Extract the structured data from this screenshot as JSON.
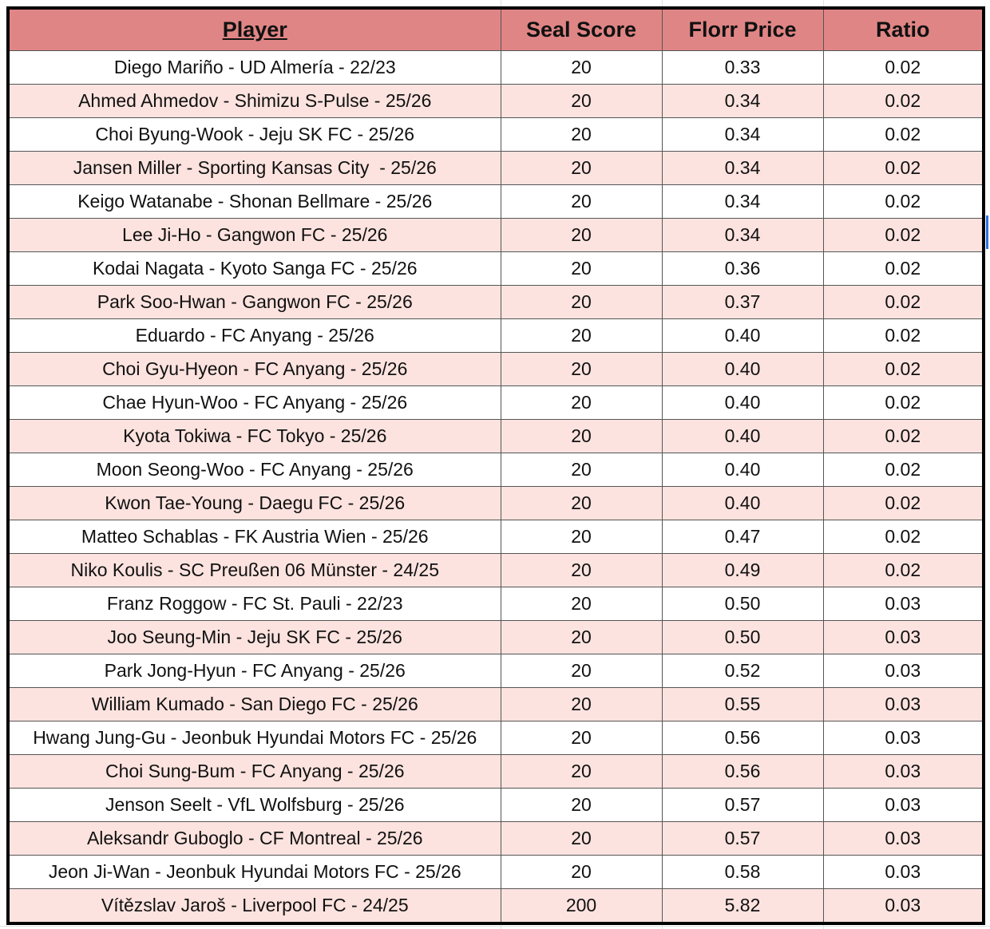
{
  "table": {
    "header": [
      "Player",
      "Seal Score",
      "Florr Price",
      "Ratio"
    ],
    "rows": [
      [
        "Diego Mariño - UD Almería - 22/23",
        "20",
        "0.33",
        "0.02"
      ],
      [
        "Ahmed Ahmedov - Shimizu S-Pulse - 25/26",
        "20",
        "0.34",
        "0.02"
      ],
      [
        "Choi Byung-Wook - Jeju SK FC - 25/26",
        "20",
        "0.34",
        "0.02"
      ],
      [
        "Jansen Miller - Sporting Kansas City  - 25/26",
        "20",
        "0.34",
        "0.02"
      ],
      [
        "Keigo Watanabe - Shonan Bellmare - 25/26",
        "20",
        "0.34",
        "0.02"
      ],
      [
        "Lee Ji-Ho - Gangwon FC - 25/26",
        "20",
        "0.34",
        "0.02"
      ],
      [
        "Kodai Nagata - Kyoto Sanga FC - 25/26",
        "20",
        "0.36",
        "0.02"
      ],
      [
        "Park Soo-Hwan - Gangwon FC - 25/26",
        "20",
        "0.37",
        "0.02"
      ],
      [
        "Eduardo - FC Anyang - 25/26",
        "20",
        "0.40",
        "0.02"
      ],
      [
        "Choi Gyu-Hyeon - FC Anyang - 25/26",
        "20",
        "0.40",
        "0.02"
      ],
      [
        "Chae Hyun-Woo - FC Anyang - 25/26",
        "20",
        "0.40",
        "0.02"
      ],
      [
        "Kyota Tokiwa - FC Tokyo - 25/26",
        "20",
        "0.40",
        "0.02"
      ],
      [
        "Moon Seong-Woo - FC Anyang - 25/26",
        "20",
        "0.40",
        "0.02"
      ],
      [
        "Kwon Tae-Young - Daegu FC - 25/26",
        "20",
        "0.40",
        "0.02"
      ],
      [
        "Matteo Schablas - FK Austria Wien - 25/26",
        "20",
        "0.47",
        "0.02"
      ],
      [
        "Niko Koulis - SC Preußen 06 Münster - 24/25",
        "20",
        "0.49",
        "0.02"
      ],
      [
        "Franz Roggow - FC St. Pauli - 22/23",
        "20",
        "0.50",
        "0.03"
      ],
      [
        "Joo Seung-Min - Jeju SK FC - 25/26",
        "20",
        "0.50",
        "0.03"
      ],
      [
        "Park Jong-Hyun - FC Anyang - 25/26",
        "20",
        "0.52",
        "0.03"
      ],
      [
        "William Kumado - San Diego FC - 25/26",
        "20",
        "0.55",
        "0.03"
      ],
      [
        "Hwang Jung-Gu - Jeonbuk Hyundai Motors FC - 25/26",
        "20",
        "0.56",
        "0.03"
      ],
      [
        "Choi Sung-Bum - FC Anyang - 25/26",
        "20",
        "0.56",
        "0.03"
      ],
      [
        "Jenson Seelt - VfL Wolfsburg - 25/26",
        "20",
        "0.57",
        "0.03"
      ],
      [
        "Aleksandr Guboglo - CF Montreal - 25/26",
        "20",
        "0.57",
        "0.03"
      ],
      [
        "Jeon Ji-Wan - Jeonbuk Hyundai Motors FC - 25/26",
        "20",
        "0.58",
        "0.03"
      ],
      [
        "Vítězslav Jaroš - Liverpool FC - 24/25",
        "200",
        "5.82",
        "0.03"
      ]
    ]
  }
}
